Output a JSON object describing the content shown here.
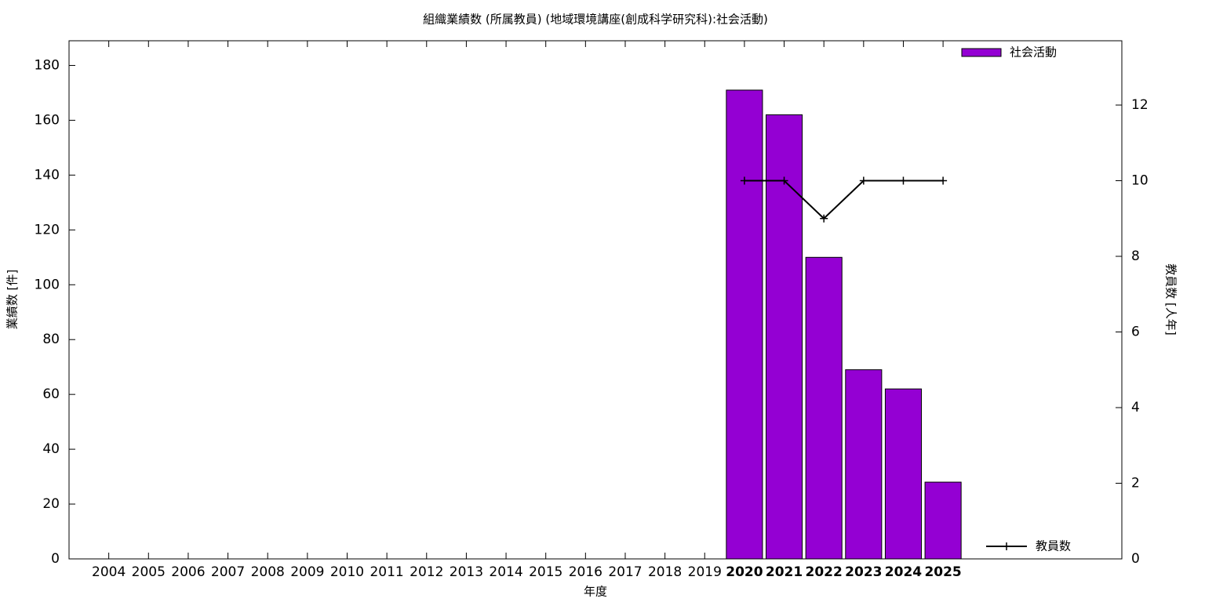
{
  "chart_data": {
    "type": "bar",
    "title": "組織業績数 (所属教員) (地域環境講座(創成科学研究科):社会活動)",
    "x_label": "年度",
    "y_label": "業績数 [件]",
    "y2_label": "教員数 [人年]",
    "categories": [
      "2004",
      "2005",
      "2006",
      "2007",
      "2008",
      "2009",
      "2010",
      "2011",
      "2012",
      "2013",
      "2014",
      "2015",
      "2016",
      "2017",
      "2018",
      "2019",
      "2020",
      "2021",
      "2022",
      "2023",
      "2024",
      "2025"
    ],
    "series": [
      {
        "name": "社会活動",
        "color": "#9400d3",
        "type": "bar",
        "values": [
          null,
          null,
          null,
          null,
          null,
          null,
          null,
          null,
          null,
          null,
          null,
          null,
          null,
          null,
          null,
          null,
          171,
          162,
          110,
          69,
          62,
          28
        ]
      },
      {
        "name": "教員数",
        "color": "#000000",
        "type": "line",
        "axis": "y2",
        "values": [
          null,
          null,
          null,
          null,
          null,
          null,
          null,
          null,
          null,
          null,
          null,
          null,
          null,
          null,
          null,
          null,
          10,
          10,
          9,
          10,
          10,
          10
        ]
      }
    ],
    "ylim": [
      0,
      189
    ],
    "yticks": [
      0,
      20,
      40,
      60,
      80,
      100,
      120,
      140,
      160,
      180
    ],
    "y2lim": [
      0,
      13.7
    ],
    "y2ticks": [
      0,
      2,
      4,
      6,
      8,
      10,
      12
    ],
    "grid": false
  }
}
